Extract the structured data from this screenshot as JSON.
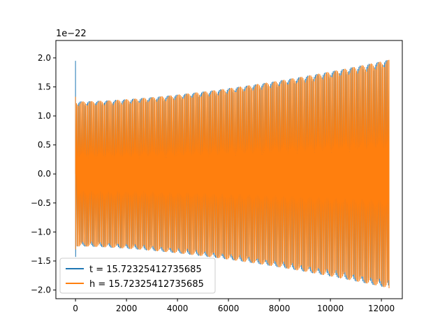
{
  "chart_data": {
    "type": "line",
    "title": "",
    "xlabel": "",
    "ylabel": "",
    "y_offset_text": "1e−22",
    "xlim": [
      -770,
      12820
    ],
    "ylim": [
      -2.15,
      2.3
    ],
    "x_ticks": [
      0,
      2000,
      4000,
      6000,
      8000,
      10000,
      12000
    ],
    "x_tick_labels": [
      "0",
      "2000",
      "4000",
      "6000",
      "8000",
      "10000",
      "12000"
    ],
    "y_ticks": [
      -2.0,
      -1.5,
      -1.0,
      -0.5,
      0.0,
      0.5,
      1.0,
      1.5,
      2.0
    ],
    "y_tick_labels": [
      "−2.0",
      "−1.5",
      "−1.0",
      "−0.5",
      "0.0",
      "0.5",
      "1.0",
      "1.5",
      "2.0"
    ],
    "grid": false,
    "legend_position": "lower-left",
    "series": [
      {
        "name": "t = 15.72325412735685",
        "color": "#1f77b4",
        "description_points": {
          "x_start": 0,
          "x_end": 12300,
          "initial_spike_max": 1.95,
          "initial_spike_min": -1.43,
          "envelope_start": 1.25,
          "envelope_end": 1.97
        }
      },
      {
        "name": "h = 15.72325412735685",
        "color": "#ff7f0e",
        "description_points": {
          "x_start": 0,
          "x_end": 12300,
          "initial_spike_max": 1.33,
          "initial_spike_min": -1.3,
          "envelope_start": 1.25,
          "envelope_end": 1.97
        }
      }
    ]
  }
}
